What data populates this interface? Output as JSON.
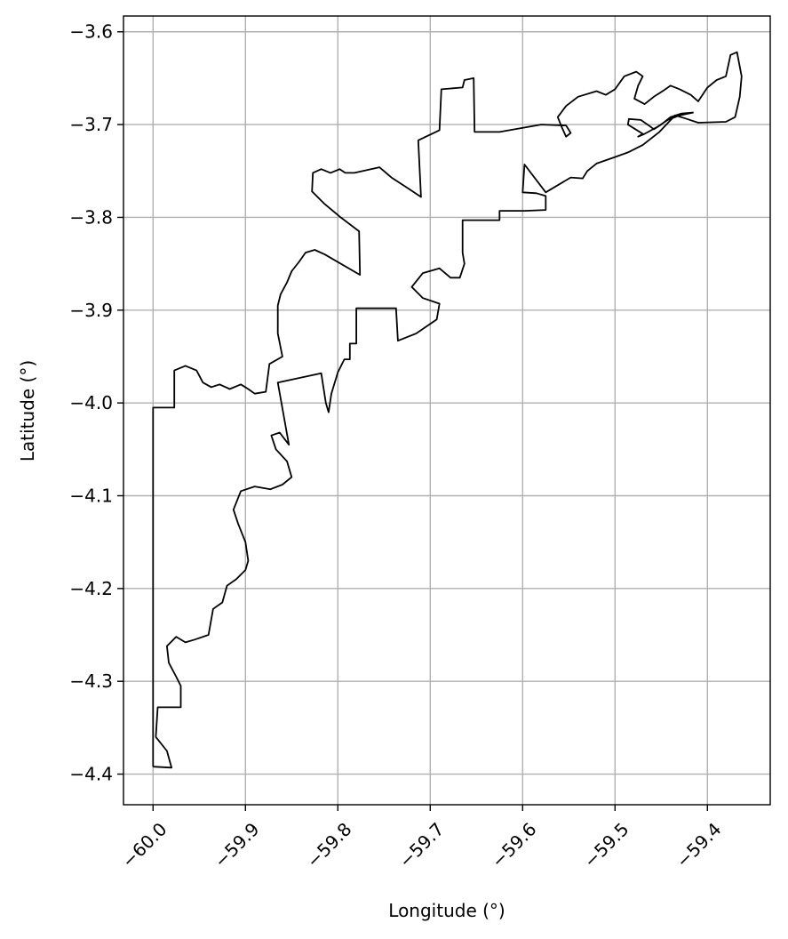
{
  "chart_data": {
    "type": "line",
    "title": "",
    "xlabel": "Longitude (°)",
    "ylabel": "Latitude (°)",
    "xlim": [
      -60.032,
      -59.332
    ],
    "ylim": [
      -4.433,
      -3.583
    ],
    "grid": true,
    "x_ticks": [
      {
        "value": -60.0,
        "label": "−60.0"
      },
      {
        "value": -59.9,
        "label": "−59.9"
      },
      {
        "value": -59.8,
        "label": "−59.8"
      },
      {
        "value": -59.7,
        "label": "−59.7"
      },
      {
        "value": -59.6,
        "label": "−59.6"
      },
      {
        "value": -59.5,
        "label": "−59.5"
      },
      {
        "value": -59.4,
        "label": "−59.4"
      }
    ],
    "y_ticks": [
      {
        "value": -3.6,
        "label": "−3.6"
      },
      {
        "value": -3.7,
        "label": "−3.7"
      },
      {
        "value": -3.8,
        "label": "−3.8"
      },
      {
        "value": -3.9,
        "label": "−3.9"
      },
      {
        "value": -4.0,
        "label": "−4.0"
      },
      {
        "value": -4.1,
        "label": "−4.1"
      },
      {
        "value": -4.2,
        "label": "−4.2"
      },
      {
        "value": -4.3,
        "label": "−4.3"
      },
      {
        "value": -4.4,
        "label": "−4.4"
      }
    ],
    "outline_color": "#000000",
    "series": [
      {
        "points": [
          [
            -60.0,
            -4.392
          ],
          [
            -60.0,
            -4.005
          ],
          [
            -59.977,
            -4.005
          ],
          [
            -59.977,
            -3.965
          ],
          [
            -59.965,
            -3.96
          ],
          [
            -59.953,
            -3.965
          ],
          [
            -59.946,
            -3.978
          ],
          [
            -59.937,
            -3.983
          ],
          [
            -59.928,
            -3.98
          ],
          [
            -59.917,
            -3.985
          ],
          [
            -59.905,
            -3.98
          ],
          [
            -59.897,
            -3.985
          ],
          [
            -59.89,
            -3.99
          ],
          [
            -59.878,
            -3.988
          ],
          [
            -59.874,
            -3.958
          ],
          [
            -59.86,
            -3.95
          ],
          [
            -59.865,
            -3.925
          ],
          [
            -59.865,
            -3.895
          ],
          [
            -59.862,
            -3.883
          ],
          [
            -59.855,
            -3.87
          ],
          [
            -59.85,
            -3.858
          ],
          [
            -59.842,
            -3.848
          ],
          [
            -59.835,
            -3.838
          ],
          [
            -59.825,
            -3.835
          ],
          [
            -59.814,
            -3.84
          ],
          [
            -59.776,
            -3.862
          ],
          [
            -59.777,
            -3.815
          ],
          [
            -59.797,
            -3.8
          ],
          [
            -59.815,
            -3.785
          ],
          [
            -59.828,
            -3.772
          ],
          [
            -59.827,
            -3.752
          ],
          [
            -59.818,
            -3.748
          ],
          [
            -59.808,
            -3.752
          ],
          [
            -59.798,
            -3.748
          ],
          [
            -59.792,
            -3.752
          ],
          [
            -59.782,
            -3.752
          ],
          [
            -59.755,
            -3.746
          ],
          [
            -59.742,
            -3.757
          ],
          [
            -59.725,
            -3.768
          ],
          [
            -59.71,
            -3.778
          ],
          [
            -59.713,
            -3.717
          ],
          [
            -59.69,
            -3.706
          ],
          [
            -59.688,
            -3.662
          ],
          [
            -59.665,
            -3.66
          ],
          [
            -59.663,
            -3.652
          ],
          [
            -59.653,
            -3.65
          ],
          [
            -59.652,
            -3.708
          ],
          [
            -59.625,
            -3.708
          ],
          [
            -59.58,
            -3.7
          ],
          [
            -59.553,
            -3.701
          ],
          [
            -59.548,
            -3.709
          ],
          [
            -59.553,
            -3.713
          ],
          [
            -59.558,
            -3.702
          ],
          [
            -59.562,
            -3.692
          ],
          [
            -59.553,
            -3.68
          ],
          [
            -59.54,
            -3.67
          ],
          [
            -59.52,
            -3.664
          ],
          [
            -59.51,
            -3.668
          ],
          [
            -59.5,
            -3.662
          ],
          [
            -59.49,
            -3.648
          ],
          [
            -59.477,
            -3.643
          ],
          [
            -59.47,
            -3.648
          ],
          [
            -59.475,
            -3.658
          ],
          [
            -59.479,
            -3.672
          ],
          [
            -59.468,
            -3.678
          ],
          [
            -59.458,
            -3.67
          ],
          [
            -59.447,
            -3.663
          ],
          [
            -59.44,
            -3.658
          ],
          [
            -59.43,
            -3.662
          ],
          [
            -59.418,
            -3.668
          ],
          [
            -59.41,
            -3.675
          ],
          [
            -59.4,
            -3.66
          ],
          [
            -59.39,
            -3.652
          ],
          [
            -59.38,
            -3.648
          ],
          [
            -59.375,
            -3.625
          ],
          [
            -59.368,
            -3.622
          ],
          [
            -59.363,
            -3.648
          ],
          [
            -59.365,
            -3.67
          ],
          [
            -59.37,
            -3.692
          ],
          [
            -59.38,
            -3.697
          ],
          [
            -59.41,
            -3.698
          ],
          [
            -59.425,
            -3.693
          ],
          [
            -59.435,
            -3.69
          ],
          [
            -59.452,
            -3.708
          ],
          [
            -59.47,
            -3.722
          ],
          [
            -59.486,
            -3.73
          ],
          [
            -59.5,
            -3.735
          ],
          [
            -59.52,
            -3.742
          ],
          [
            -59.53,
            -3.75
          ],
          [
            -59.535,
            -3.758
          ],
          [
            -59.548,
            -3.757
          ],
          [
            -59.575,
            -3.773
          ],
          [
            -59.598,
            -3.743
          ],
          [
            -59.6,
            -3.773
          ],
          [
            -59.585,
            -3.774
          ],
          [
            -59.575,
            -3.777
          ],
          [
            -59.575,
            -3.792
          ],
          [
            -59.598,
            -3.793
          ],
          [
            -59.625,
            -3.793
          ],
          [
            -59.625,
            -3.803
          ],
          [
            -59.665,
            -3.803
          ],
          [
            -59.665,
            -3.838
          ],
          [
            -59.663,
            -3.85
          ],
          [
            -59.668,
            -3.865
          ],
          [
            -59.678,
            -3.865
          ],
          [
            -59.69,
            -3.855
          ],
          [
            -59.708,
            -3.86
          ],
          [
            -59.72,
            -3.875
          ],
          [
            -59.708,
            -3.887
          ],
          [
            -59.69,
            -3.893
          ],
          [
            -59.693,
            -3.91
          ],
          [
            -59.715,
            -3.925
          ],
          [
            -59.735,
            -3.933
          ],
          [
            -59.737,
            -3.898
          ],
          [
            -59.78,
            -3.898
          ],
          [
            -59.78,
            -3.936
          ],
          [
            -59.787,
            -3.936
          ],
          [
            -59.787,
            -3.953
          ],
          [
            -59.793,
            -3.953
          ],
          [
            -59.8,
            -3.967
          ],
          [
            -59.807,
            -3.99
          ],
          [
            -59.81,
            -4.01
          ],
          [
            -59.813,
            -4.0
          ],
          [
            -59.818,
            -3.968
          ],
          [
            -59.865,
            -3.978
          ],
          [
            -59.853,
            -4.045
          ],
          [
            -59.863,
            -4.032
          ],
          [
            -59.872,
            -4.035
          ],
          [
            -59.867,
            -4.05
          ],
          [
            -59.855,
            -4.063
          ],
          [
            -59.85,
            -4.08
          ],
          [
            -59.86,
            -4.088
          ],
          [
            -59.873,
            -4.093
          ],
          [
            -59.89,
            -4.09
          ],
          [
            -59.905,
            -4.095
          ],
          [
            -59.913,
            -4.115
          ],
          [
            -59.908,
            -4.13
          ],
          [
            -59.9,
            -4.15
          ],
          [
            -59.897,
            -4.17
          ],
          [
            -59.9,
            -4.18
          ],
          [
            -59.91,
            -4.19
          ],
          [
            -59.92,
            -4.197
          ],
          [
            -59.925,
            -4.215
          ],
          [
            -59.935,
            -4.222
          ],
          [
            -59.94,
            -4.25
          ],
          [
            -59.955,
            -4.255
          ],
          [
            -59.965,
            -4.258
          ],
          [
            -59.975,
            -4.252
          ],
          [
            -59.985,
            -4.262
          ],
          [
            -59.983,
            -4.28
          ],
          [
            -59.975,
            -4.295
          ],
          [
            -59.97,
            -4.305
          ],
          [
            -59.97,
            -4.328
          ],
          [
            -59.995,
            -4.328
          ],
          [
            -59.997,
            -4.36
          ],
          [
            -59.985,
            -4.375
          ],
          [
            -59.98,
            -4.393
          ],
          [
            -60.0,
            -4.392
          ]
        ]
      },
      {
        "points": [
          [
            -59.415,
            -3.687
          ],
          [
            -59.428,
            -3.688
          ],
          [
            -59.44,
            -3.692
          ],
          [
            -59.45,
            -3.7
          ],
          [
            -59.458,
            -3.705
          ],
          [
            -59.462,
            -3.702
          ],
          [
            -59.472,
            -3.695
          ],
          [
            -59.485,
            -3.694
          ],
          [
            -59.486,
            -3.7
          ],
          [
            -59.478,
            -3.705
          ],
          [
            -59.47,
            -3.71
          ],
          [
            -59.475,
            -3.713
          ],
          [
            -59.468,
            -3.71
          ],
          [
            -59.455,
            -3.703
          ],
          [
            -59.443,
            -3.695
          ],
          [
            -59.43,
            -3.69
          ],
          [
            -59.415,
            -3.687
          ]
        ]
      }
    ]
  }
}
